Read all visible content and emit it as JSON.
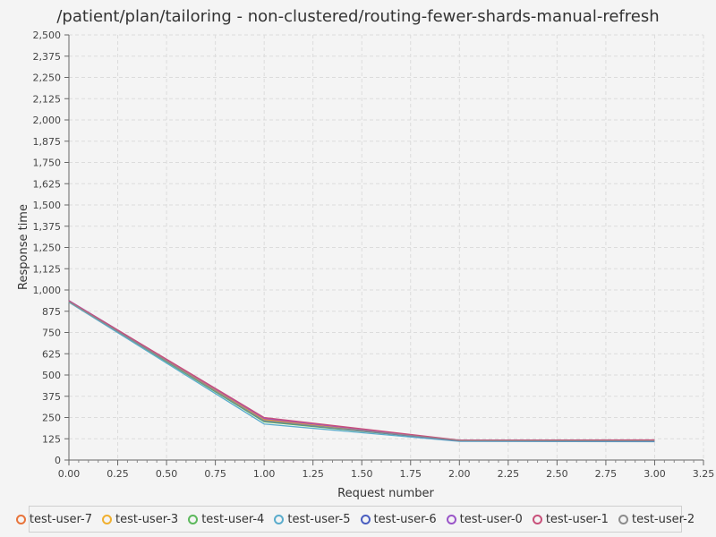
{
  "chart_data": {
    "type": "line",
    "title": "/patient/plan/tailoring - non-clustered/routing-fewer-shards-manual-refresh",
    "xlabel": "Request number",
    "ylabel": "Response time",
    "xlim": [
      0,
      3.25
    ],
    "ylim": [
      0,
      2500
    ],
    "xticks": [
      "0.00",
      "0.25",
      "0.50",
      "0.75",
      "1.00",
      "1.25",
      "1.50",
      "1.75",
      "2.00",
      "2.25",
      "2.50",
      "2.75",
      "3.00",
      "3.25"
    ],
    "yticks": [
      "0",
      "125",
      "250",
      "375",
      "500",
      "625",
      "750",
      "875",
      "1,000",
      "1,125",
      "1,250",
      "1,375",
      "1,500",
      "1,625",
      "1,750",
      "1,875",
      "2,000",
      "2,125",
      "2,250",
      "2,375",
      "2,500"
    ],
    "grid": true,
    "legend_position": "bottom",
    "x": [
      0,
      1,
      2,
      3
    ],
    "series": [
      {
        "name": "test-user-7",
        "color": "#e8743b",
        "values": [
          935,
          240,
          115,
          112
        ]
      },
      {
        "name": "test-user-3",
        "color": "#f0b030",
        "values": [
          932,
          235,
          114,
          110
        ]
      },
      {
        "name": "test-user-4",
        "color": "#5cb85c",
        "values": [
          930,
          225,
          113,
          111
        ]
      },
      {
        "name": "test-user-5",
        "color": "#5aaccc",
        "values": [
          928,
          212,
          110,
          108
        ]
      },
      {
        "name": "test-user-6",
        "color": "#4a5ec0",
        "values": [
          933,
          230,
          113,
          112
        ]
      },
      {
        "name": "test-user-0",
        "color": "#9a55c8",
        "values": [
          938,
          245,
          116,
          115
        ]
      },
      {
        "name": "test-user-1",
        "color": "#c8507a",
        "values": [
          936,
          250,
          117,
          118
        ]
      },
      {
        "name": "test-user-2",
        "color": "#8c8c8c",
        "values": [
          931,
          232,
          114,
          113
        ]
      }
    ]
  }
}
